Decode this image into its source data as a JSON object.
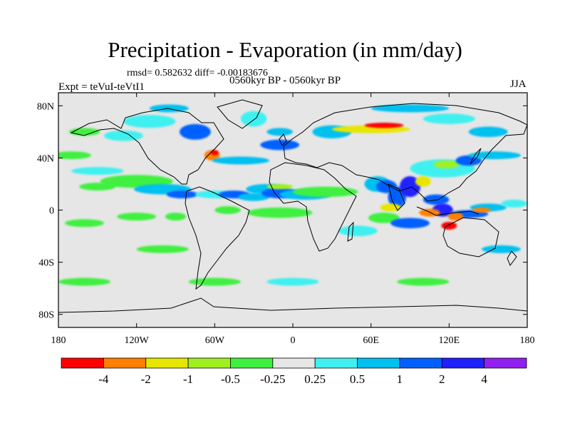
{
  "title": "Precipitation - Evaporation (in mm/day)",
  "stats_line": "rmsd= 0.582632 diff= -0.00183676",
  "experiment": "Expt = teVuI-teVtI1",
  "period": "0560kyr BP - 0560kyr BP",
  "season": "JJA",
  "map": {
    "lon_range": [
      -180,
      180
    ],
    "lat_range": [
      -90,
      90
    ],
    "lat_ticks": [
      {
        "value": 80,
        "label": "80N"
      },
      {
        "value": 40,
        "label": "40N"
      },
      {
        "value": 0,
        "label": "0"
      },
      {
        "value": -40,
        "label": "40S"
      },
      {
        "value": -80,
        "label": "80S"
      }
    ],
    "lon_ticks": [
      {
        "value": -180,
        "label": "180"
      },
      {
        "value": -120,
        "label": "120W"
      },
      {
        "value": -60,
        "label": "60W"
      },
      {
        "value": 0,
        "label": "0"
      },
      {
        "value": 60,
        "label": "60E"
      },
      {
        "value": 120,
        "label": "120E"
      },
      {
        "value": 180,
        "label": "180"
      }
    ],
    "background_color": "#e6e6e6"
  },
  "colorbar": {
    "colors": [
      "#ff0000",
      "#ff8000",
      "#e6e600",
      "#a0f020",
      "#40f040",
      "#e6e6e6",
      "#40f0f0",
      "#00c0f0",
      "#0060ff",
      "#2020ff",
      "#9020f0"
    ],
    "labels": [
      "-4",
      "-2",
      "-1",
      "-0.5",
      "-0.25",
      "0.25",
      "0.5",
      "1",
      "2",
      "4"
    ]
  },
  "anomalies": [
    {
      "lon": -120,
      "lat": 22,
      "rx": 28,
      "ry": 5,
      "level": 4
    },
    {
      "lon": -100,
      "lat": 16,
      "rx": 22,
      "ry": 4,
      "level": 7
    },
    {
      "lon": -85,
      "lat": 12,
      "rx": 12,
      "ry": 3,
      "level": 8
    },
    {
      "lon": -60,
      "lat": 12,
      "rx": 15,
      "ry": 3,
      "level": 6
    },
    {
      "lon": -45,
      "lat": 12,
      "rx": 12,
      "ry": 3,
      "level": 8
    },
    {
      "lon": -30,
      "lat": 10,
      "rx": 12,
      "ry": 3,
      "level": 7
    },
    {
      "lon": -20,
      "lat": 16,
      "rx": 16,
      "ry": 4,
      "level": 7
    },
    {
      "lon": -10,
      "lat": 13,
      "rx": 14,
      "ry": 4,
      "level": 8
    },
    {
      "lon": 10,
      "lat": 12,
      "rx": 20,
      "ry": 4,
      "level": 7
    },
    {
      "lon": -10,
      "lat": 18,
      "rx": 10,
      "ry": 2,
      "level": 3
    },
    {
      "lon": 25,
      "lat": 14,
      "rx": 25,
      "ry": 4,
      "level": 4
    },
    {
      "lon": 65,
      "lat": 20,
      "rx": 10,
      "ry": 6,
      "level": 7
    },
    {
      "lon": 72,
      "lat": 18,
      "rx": 8,
      "ry": 5,
      "level": 8
    },
    {
      "lon": 80,
      "lat": 10,
      "rx": 7,
      "ry": 8,
      "level": 8
    },
    {
      "lon": 90,
      "lat": 18,
      "rx": 8,
      "ry": 8,
      "level": 9
    },
    {
      "lon": 110,
      "lat": 8,
      "rx": 10,
      "ry": 4,
      "level": 8
    },
    {
      "lon": 115,
      "lat": 0,
      "rx": 8,
      "ry": 5,
      "level": 9
    },
    {
      "lon": 135,
      "lat": -3,
      "rx": 15,
      "ry": 3,
      "level": 8
    },
    {
      "lon": 150,
      "lat": 2,
      "rx": 14,
      "ry": 3,
      "level": 7
    },
    {
      "lon": 170,
      "lat": 5,
      "rx": 10,
      "ry": 3,
      "level": 6
    },
    {
      "lon": 115,
      "lat": 32,
      "rx": 25,
      "ry": 7,
      "level": 6
    },
    {
      "lon": 118,
      "lat": 35,
      "rx": 10,
      "ry": 3,
      "level": 3
    },
    {
      "lon": 135,
      "lat": 38,
      "rx": 10,
      "ry": 4,
      "level": 8
    },
    {
      "lon": 155,
      "lat": 42,
      "rx": 20,
      "ry": 3,
      "level": 7
    },
    {
      "lon": 100,
      "lat": 22,
      "rx": 6,
      "ry": 4,
      "level": 2
    },
    {
      "lon": 105,
      "lat": -2,
      "rx": 8,
      "ry": 3,
      "level": 1
    },
    {
      "lon": 125,
      "lat": -5,
      "rx": 6,
      "ry": 3,
      "level": 1
    },
    {
      "lon": 145,
      "lat": 0,
      "rx": 7,
      "ry": 2,
      "level": 1
    },
    {
      "lon": 120,
      "lat": -12,
      "rx": 6,
      "ry": 3,
      "level": 0
    },
    {
      "lon": 75,
      "lat": 2,
      "rx": 8,
      "ry": 3,
      "level": 2
    },
    {
      "lon": 70,
      "lat": -6,
      "rx": 12,
      "ry": 4,
      "level": 4
    },
    {
      "lon": 90,
      "lat": -10,
      "rx": 15,
      "ry": 4,
      "level": 8
    },
    {
      "lon": 50,
      "lat": -16,
      "rx": 15,
      "ry": 4,
      "level": 6
    },
    {
      "lon": -10,
      "lat": -2,
      "rx": 25,
      "ry": 4,
      "level": 4
    },
    {
      "lon": -50,
      "lat": 0,
      "rx": 10,
      "ry": 3,
      "level": 4
    },
    {
      "lon": -120,
      "lat": -5,
      "rx": 15,
      "ry": 3,
      "level": 4
    },
    {
      "lon": -160,
      "lat": -10,
      "rx": 15,
      "ry": 3,
      "level": 4
    },
    {
      "lon": -90,
      "lat": -5,
      "rx": 8,
      "ry": 3,
      "level": 4
    },
    {
      "lon": -150,
      "lat": 18,
      "rx": 14,
      "ry": 3,
      "level": 4
    },
    {
      "lon": -150,
      "lat": 30,
      "rx": 20,
      "ry": 3,
      "level": 6
    },
    {
      "lon": -170,
      "lat": 42,
      "rx": 15,
      "ry": 3,
      "level": 4
    },
    {
      "lon": -130,
      "lat": 57,
      "rx": 15,
      "ry": 4,
      "level": 6
    },
    {
      "lon": -160,
      "lat": 60,
      "rx": 12,
      "ry": 3,
      "level": 4
    },
    {
      "lon": -110,
      "lat": 68,
      "rx": 20,
      "ry": 5,
      "level": 6
    },
    {
      "lon": -95,
      "lat": 78,
      "rx": 15,
      "ry": 3,
      "level": 7
    },
    {
      "lon": -75,
      "lat": 60,
      "rx": 12,
      "ry": 6,
      "level": 8
    },
    {
      "lon": -62,
      "lat": 42,
      "rx": 6,
      "ry": 4,
      "level": 1
    },
    {
      "lon": -60,
      "lat": 44,
      "rx": 3,
      "ry": 2,
      "level": 0
    },
    {
      "lon": -40,
      "lat": 38,
      "rx": 22,
      "ry": 3,
      "level": 7
    },
    {
      "lon": -30,
      "lat": 70,
      "rx": 10,
      "ry": 6,
      "level": 6
    },
    {
      "lon": -10,
      "lat": 60,
      "rx": 10,
      "ry": 3,
      "level": 7
    },
    {
      "lon": -10,
      "lat": 50,
      "rx": 15,
      "ry": 4,
      "level": 8
    },
    {
      "lon": 30,
      "lat": 60,
      "rx": 15,
      "ry": 5,
      "level": 7
    },
    {
      "lon": 60,
      "lat": 62,
      "rx": 30,
      "ry": 3,
      "level": 2
    },
    {
      "lon": 70,
      "lat": 65,
      "rx": 15,
      "ry": 2,
      "level": 0
    },
    {
      "lon": 120,
      "lat": 70,
      "rx": 20,
      "ry": 4,
      "level": 6
    },
    {
      "lon": 90,
      "lat": 78,
      "rx": 30,
      "ry": 3,
      "level": 7
    },
    {
      "lon": 150,
      "lat": 60,
      "rx": 15,
      "ry": 4,
      "level": 7
    },
    {
      "lon": -160,
      "lat": -55,
      "rx": 20,
      "ry": 3,
      "level": 4
    },
    {
      "lon": -60,
      "lat": -55,
      "rx": 20,
      "ry": 3,
      "level": 4
    },
    {
      "lon": 0,
      "lat": -55,
      "rx": 20,
      "ry": 3,
      "level": 6
    },
    {
      "lon": 100,
      "lat": -55,
      "rx": 20,
      "ry": 3,
      "level": 4
    },
    {
      "lon": -100,
      "lat": -30,
      "rx": 20,
      "ry": 3,
      "level": 4
    },
    {
      "lon": 160,
      "lat": -30,
      "rx": 15,
      "ry": 3,
      "level": 7
    }
  ]
}
